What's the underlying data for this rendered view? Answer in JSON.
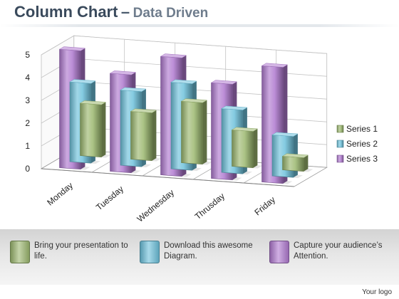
{
  "header": {
    "title": "Column Chart",
    "dash": "–",
    "subtitle": "Data Driven"
  },
  "chart_data": {
    "type": "bar",
    "categories": [
      "Monday",
      "Tuesday",
      "Wednesday",
      "Thrusday",
      "Friday"
    ],
    "series": [
      {
        "name": "Series 1",
        "values": [
          2.3,
          2.1,
          2.7,
          1.6,
          0.6
        ],
        "color": "#9cb870"
      },
      {
        "name": "Series 2",
        "values": [
          3.5,
          3.3,
          3.8,
          2.8,
          1.8
        ],
        "color": "#6ec2dc"
      },
      {
        "name": "Series 3",
        "values": [
          5.2,
          4.3,
          5.2,
          4.2,
          5.1
        ],
        "color": "#b07ad0"
      }
    ],
    "yticks": [
      "0",
      "1",
      "2",
      "3",
      "4",
      "5"
    ],
    "ylim": [
      0,
      5
    ],
    "legend_position": "right",
    "grid": true
  },
  "footer": {
    "items": [
      {
        "text": "Bring your presentation to life.",
        "color": "#9cb870"
      },
      {
        "text": "Download this awesome Diagram.",
        "color": "#6ec2dc"
      },
      {
        "text": "Capture your audience’s Attention.",
        "color": "#b07ad0"
      }
    ],
    "brand": "Your logo"
  }
}
